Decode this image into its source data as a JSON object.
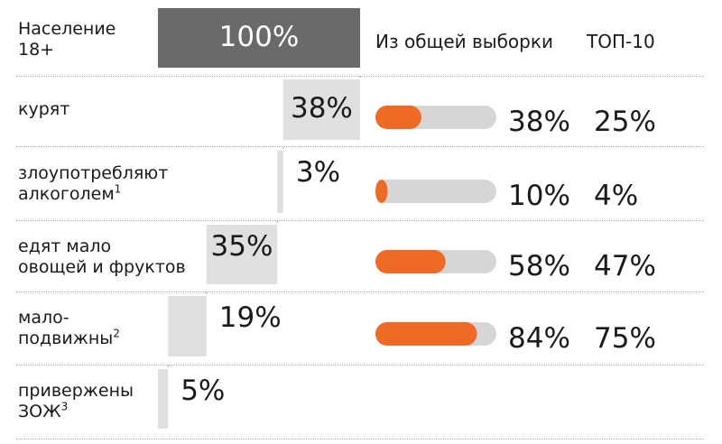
{
  "header": {
    "population_label": "Население",
    "population_label_2": "18+",
    "col_sample": "Из общей выборки",
    "col_top10": "ТОП-10"
  },
  "rows": [
    {
      "label": "курят",
      "label2": "",
      "sup": ""
    },
    {
      "label": "злоупотребляют",
      "label2": "алкоголем",
      "sup": "1"
    },
    {
      "label": "едят мало",
      "label2": "овощей и фруктов",
      "sup": ""
    },
    {
      "label": "мало-",
      "label2": "подвижны",
      "sup": "2"
    },
    {
      "label": "привержены",
      "label2": "ЗОЖ",
      "sup": "3"
    }
  ],
  "colors": {
    "orange": "#ef6a24",
    "dark_gray": "#6a6a6a",
    "light_gray": "#e0e0e0",
    "track": "#d6d6d6"
  },
  "chart_data": {
    "type": "bar",
    "title": "",
    "waterfall": {
      "total": {
        "label": "Население 18+",
        "value": 100,
        "text": "100%"
      },
      "categories": [
        "курят",
        "злоупотребляют алкоголем",
        "едят мало овощей и фруктов",
        "малоподвижны",
        "привержены ЗОЖ"
      ],
      "values": [
        38,
        3,
        35,
        19,
        5
      ],
      "value_labels": [
        "38%",
        "3%",
        "35%",
        "19%",
        "5%"
      ]
    },
    "series": [
      {
        "name": "Из общей выборки",
        "values": [
          38,
          10,
          58,
          84
        ],
        "labels": [
          "38%",
          "10%",
          "58%",
          "84%"
        ]
      },
      {
        "name": "ТОП-10",
        "values": [
          25,
          4,
          47,
          75
        ],
        "labels": [
          "25%",
          "4%",
          "47%",
          "75%"
        ]
      }
    ]
  }
}
